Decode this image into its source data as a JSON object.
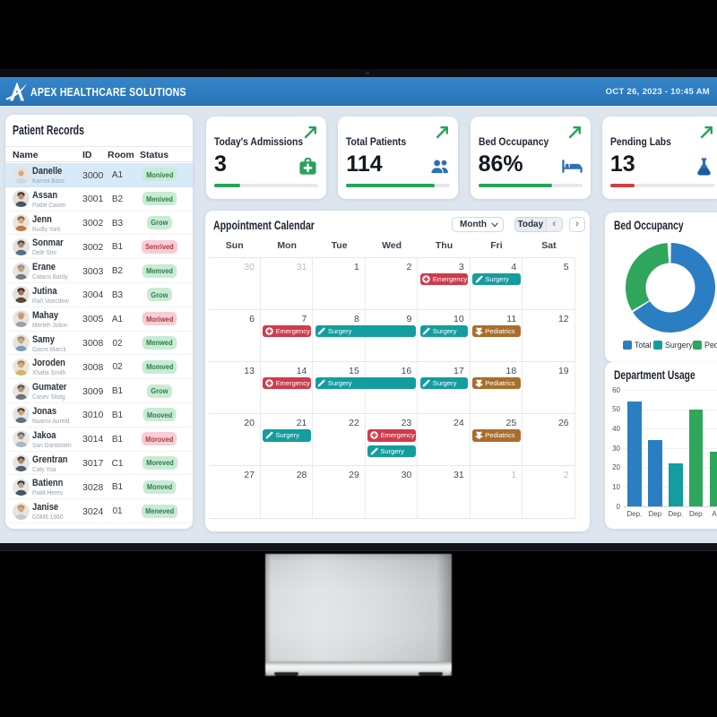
{
  "topbar": {
    "brand": "APEX HEALTHCARE SOLUTIONS",
    "datetime": "OCT 26, 2023 - 10:45 AM",
    "bar_color": "#2e7cc0"
  },
  "patients": {
    "title": "Patient Records",
    "columns": [
      "Name",
      "ID",
      "Room",
      "Status"
    ],
    "status_colors": {
      "green": "#2e7c4b",
      "red": "#ad3a44"
    },
    "rows": [
      {
        "name": "Danelle",
        "sub": "Karnot Bass",
        "id": "3000",
        "room": "A1",
        "status": "Monived",
        "status_kind": "green",
        "selected": true
      },
      {
        "name": "Assan",
        "sub": "Patile Casen",
        "id": "3001",
        "room": "B2",
        "status": "Menived",
        "status_kind": "green",
        "selected": false
      },
      {
        "name": "Jenn",
        "sub": "Rudly York",
        "id": "3002",
        "room": "B3",
        "status": "Grow",
        "status_kind": "green",
        "selected": false
      },
      {
        "name": "Sonmar",
        "sub": "Delé Stni",
        "id": "3002",
        "room": "B1",
        "status": "Senrived",
        "status_kind": "red",
        "selected": false
      },
      {
        "name": "Erane",
        "sub": "Catans Bardy",
        "id": "3003",
        "room": "B2",
        "status": "Memved",
        "status_kind": "green",
        "selected": false
      },
      {
        "name": "Jutina",
        "sub": "Rañ Voocdew",
        "id": "3004",
        "room": "B3",
        "status": "Grow",
        "status_kind": "green",
        "selected": false
      },
      {
        "name": "Mahay",
        "sub": "Merteh Jolion",
        "id": "3005",
        "room": "A1",
        "status": "Moriwed",
        "status_kind": "red",
        "selected": false
      },
      {
        "name": "Samy",
        "sub": "Gacre Marck",
        "id": "3008",
        "room": "02",
        "status": "Menwed",
        "status_kind": "green",
        "selected": false
      },
      {
        "name": "Joroden",
        "sub": "Xhafia Smith",
        "id": "3008",
        "room": "02",
        "status": "Momved",
        "status_kind": "green",
        "selected": false
      },
      {
        "name": "Gumater",
        "sub": "Casev Slistg",
        "id": "3009",
        "room": "B1",
        "status": "Grow",
        "status_kind": "green",
        "selected": false
      },
      {
        "name": "Jonas",
        "sub": "Nuamv Aureld",
        "id": "3010",
        "room": "B1",
        "status": "Mooved",
        "status_kind": "green",
        "selected": false
      },
      {
        "name": "Jakoa",
        "sub": "San Dantosten",
        "id": "3014",
        "room": "B1",
        "status": "Moroved",
        "status_kind": "red",
        "selected": false
      },
      {
        "name": "Grentran",
        "sub": "Caty Yoa",
        "id": "3017",
        "room": "C1",
        "status": "Moreved",
        "status_kind": "green",
        "selected": false
      },
      {
        "name": "Batienn",
        "sub": "Patilt Herev",
        "id": "3028",
        "room": "B1",
        "status": "Monved",
        "status_kind": "green",
        "selected": false
      },
      {
        "name": "Janise",
        "sub": "G5M6 1960",
        "id": "3024",
        "room": "01",
        "status": "Meneved",
        "status_kind": "green",
        "selected": false
      }
    ]
  },
  "stats": [
    {
      "label": "Today's Admissions",
      "value": "3",
      "icon": "medical-bag-icon",
      "icon_color": "#27a35b",
      "progress": 25,
      "bar_color": "#27a35b"
    },
    {
      "label": "Total Patients",
      "value": "114",
      "icon": "patients-icon",
      "icon_color": "#2d6fb8",
      "progress": 85,
      "bar_color": "#27a35b"
    },
    {
      "label": "Bed Occupancy",
      "value": "86%",
      "icon": "bed-icon",
      "icon_color": "#2d6fb8",
      "progress": 71,
      "bar_color": "#27a35b"
    },
    {
      "label": "Pending Labs",
      "value": "13",
      "icon": "lab-flask-icon",
      "icon_color": "#2d6fb8",
      "progress": 23,
      "bar_color": "#cc4040"
    }
  ],
  "calendar": {
    "title": "Appointment Calendar",
    "view_label": "Month",
    "today_label": "Today",
    "prev_label": "‹",
    "next_label": "›",
    "day_names": [
      "Sun",
      "Mon",
      "Tue",
      "Wed",
      "Thu",
      "Fri",
      "Sat"
    ],
    "event_types": {
      "emergency": {
        "label": "Emergency",
        "color": "#cf3b4c",
        "icon": "emergency-cross-icon"
      },
      "surgery": {
        "label": "Surgery",
        "color": "#149d9e",
        "icon": "scalpel-icon"
      },
      "pediatrics": {
        "label": "Pediatrics",
        "color": "#a96e2b",
        "icon": "teddy-bear-icon"
      }
    },
    "weeks": [
      [
        {
          "day": "30",
          "muted": true
        },
        {
          "day": "31",
          "muted": true
        },
        {
          "day": "1"
        },
        {
          "day": "2"
        },
        {
          "day": "3",
          "events": [
            {
              "type": "emergency"
            }
          ]
        },
        {
          "day": "4",
          "events": [
            {
              "type": "surgery"
            }
          ]
        },
        {
          "day": "5"
        }
      ],
      [
        {
          "day": "6"
        },
        {
          "day": "7",
          "events": [
            {
              "type": "emergency"
            }
          ]
        },
        {
          "day": "8",
          "events": [
            {
              "type": "surgery",
              "span": 2
            }
          ]
        },
        {
          "day": "9"
        },
        {
          "day": "10",
          "events": [
            {
              "type": "surgery"
            }
          ]
        },
        {
          "day": "11",
          "events": [
            {
              "type": "pediatrics"
            }
          ]
        },
        {
          "day": "12"
        }
      ],
      [
        {
          "day": "13"
        },
        {
          "day": "14",
          "events": [
            {
              "type": "emergency"
            }
          ]
        },
        {
          "day": "15",
          "events": [
            {
              "type": "surgery",
              "span": 2
            }
          ]
        },
        {
          "day": "16"
        },
        {
          "day": "17",
          "events": [
            {
              "type": "surgery"
            }
          ]
        },
        {
          "day": "18",
          "events": [
            {
              "type": "pediatrics"
            }
          ]
        },
        {
          "day": "19"
        }
      ],
      [
        {
          "day": "20"
        },
        {
          "day": "21",
          "events": [
            {
              "type": "surgery"
            }
          ]
        },
        {
          "day": "22"
        },
        {
          "day": "23",
          "events": [
            {
              "type": "emergency"
            },
            {
              "type": "surgery"
            }
          ]
        },
        {
          "day": "24"
        },
        {
          "day": "25",
          "events": [
            {
              "type": "pediatrics"
            }
          ]
        },
        {
          "day": "26"
        }
      ],
      [
        {
          "day": "27"
        },
        {
          "day": "28"
        },
        {
          "day": "29"
        },
        {
          "day": "30"
        },
        {
          "day": "31"
        },
        {
          "day": "1",
          "muted": true
        },
        {
          "day": "2",
          "muted": true
        }
      ]
    ]
  },
  "chart_data": [
    {
      "type": "pie",
      "title": "Bed Occupancy",
      "labels": [
        "Total",
        "Surgery",
        "Pediatrics"
      ],
      "values": [
        66,
        1,
        33
      ],
      "colors": [
        "#2b7ec2",
        "#149d9e",
        "#2fa65c"
      ],
      "donut": true,
      "legend_position": "bottom"
    },
    {
      "type": "bar",
      "title": "Department Usage",
      "categories": [
        "Dep.",
        "Dep",
        "Dep.",
        "Dep",
        "Ao"
      ],
      "values": [
        54,
        34,
        22,
        50,
        28
      ],
      "colors": [
        "#2b7ec2",
        "#2b7ec2",
        "#149d9e",
        "#2fa65c",
        "#2fa65c"
      ],
      "xlabel": "",
      "ylabel": "",
      "ylim": [
        0,
        60
      ],
      "yticks": [
        0,
        10,
        20,
        30,
        40,
        50,
        60
      ],
      "grid": true
    }
  ]
}
